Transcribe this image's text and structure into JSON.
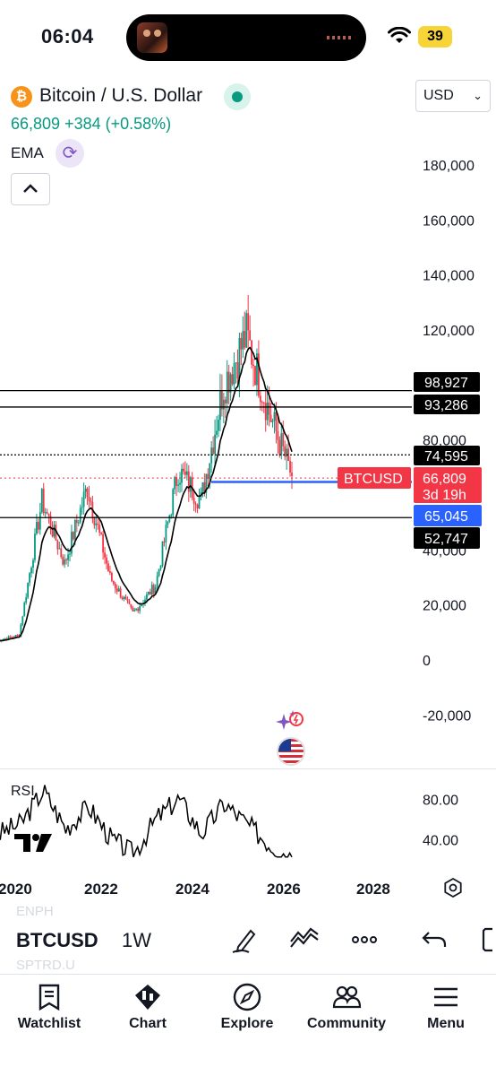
{
  "status_bar": {
    "time": "06:04",
    "battery": "39"
  },
  "header": {
    "logo_glyph": "₿",
    "title": "Bitcoin / U.S. Dollar",
    "price_change": "66,809  +384 (+0.58%)",
    "currency": "USD",
    "indicator": "EMA"
  },
  "colors": {
    "up": "#089981",
    "down": "#f23645",
    "ema": "#000000",
    "support_line": "#2962ff",
    "accent_orange": "#f7931a"
  },
  "price_axis": {
    "labels": [
      "180,000",
      "160,000",
      "140,000",
      "120,000",
      "80,000",
      "40,000",
      "20,000",
      "0",
      "-20,000"
    ]
  },
  "price_tags": {
    "level_1": "98,927",
    "level_2": "93,286",
    "level_3": "74,595",
    "symbol": "BTCUSD",
    "current": "66,809",
    "countdown": "3d 19h",
    "support": "65,045",
    "level_4": "52,747"
  },
  "rsi": {
    "label": "RSI",
    "axis": [
      "80.00",
      "40.00"
    ]
  },
  "time_axis": [
    "2020",
    "2022",
    "2024",
    "2026",
    "2028"
  ],
  "toolbar": {
    "symbol": "BTCUSD",
    "interval": "1W",
    "ghost_above": "ENPH",
    "ghost_below": "SPTRD.U"
  },
  "nav": [
    "Watchlist",
    "Chart",
    "Explore",
    "Community",
    "Menu"
  ],
  "chart_data": {
    "type": "candlestick",
    "timeframe": "1W",
    "x": [
      "2019",
      "2020",
      "2021-Q1",
      "2021-Q2",
      "2021-Q4",
      "2022",
      "2022-Q4",
      "2023",
      "2024",
      "2024-Q3",
      "2025-Q1",
      "2025-Q3",
      "2025-Q4",
      "2026"
    ],
    "close": [
      7000,
      9000,
      58000,
      35000,
      63000,
      30000,
      17000,
      27000,
      69000,
      58000,
      100000,
      118000,
      90000,
      66809
    ],
    "ylim": [
      -20000,
      190000
    ],
    "horizontal_levels": [
      98927,
      93286,
      74595,
      65045,
      52747
    ],
    "current_price": 66809,
    "rsi_values": [
      45,
      55,
      88,
      50,
      72,
      40,
      25,
      60,
      80,
      45,
      75,
      55,
      35,
      22
    ],
    "rsi_ylim": [
      20,
      100
    ]
  }
}
